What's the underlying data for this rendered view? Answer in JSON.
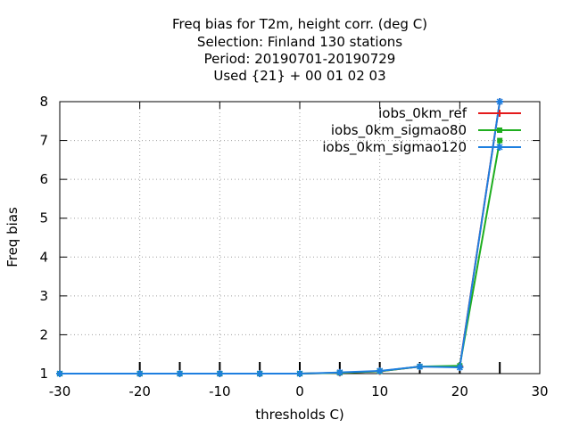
{
  "chart_data": {
    "type": "line",
    "title_lines": [
      "Freq bias  for T2m, height corr. (deg C)",
      "Selection: Finland     130 stations",
      "Period: 20190701-20190729",
      "Used {21} + 00 01 02 03"
    ],
    "xlabel": "thresholds C)",
    "ylabel": "Freq bias",
    "xlim": [
      -30,
      30
    ],
    "ylim": [
      1,
      8
    ],
    "xticks": [
      -30,
      -20,
      -10,
      0,
      10,
      20,
      30
    ],
    "yticks": [
      1,
      2,
      3,
      4,
      5,
      6,
      7,
      8
    ],
    "x_minor_ticks": [
      -20,
      -15,
      -10,
      -5,
      0,
      5,
      10,
      15,
      20,
      25
    ],
    "grid": true,
    "legend_position": "top-right",
    "x": [
      -30,
      -20,
      -15,
      -10,
      -5,
      0,
      5,
      10,
      15,
      20,
      25
    ],
    "series": [
      {
        "name": "iobs_0km_ref",
        "color": "#e41a1c",
        "marker": "plus",
        "values": [
          1.0,
          1.0,
          1.0,
          1.0,
          1.0,
          1.0,
          1.02,
          1.06,
          1.18,
          1.18,
          8.0
        ]
      },
      {
        "name": "iobs_0km_sigmao80",
        "color": "#1fae1f",
        "marker": "square",
        "values": [
          1.0,
          1.0,
          1.0,
          1.0,
          1.0,
          1.0,
          1.02,
          1.06,
          1.18,
          1.2,
          7.0
        ]
      },
      {
        "name": "iobs_0km_sigmao120",
        "color": "#1e7fe0",
        "marker": "star",
        "values": [
          1.0,
          1.0,
          1.0,
          1.0,
          1.0,
          1.0,
          1.03,
          1.07,
          1.18,
          1.16,
          8.0
        ]
      }
    ]
  }
}
